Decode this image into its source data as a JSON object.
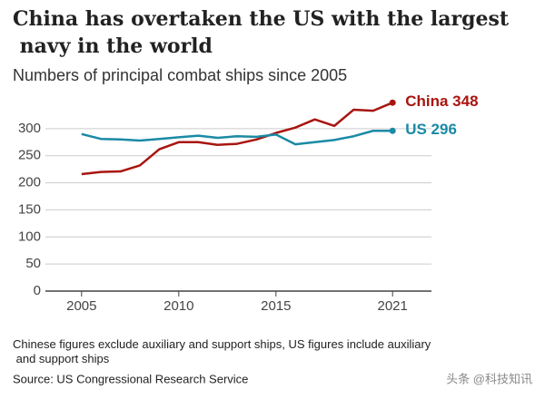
{
  "chart_data": {
    "type": "line",
    "title": "China has overtaken the US with the largest navy in the world",
    "subtitle": "Numbers of principal combat ships since 2005",
    "x": [
      2005,
      2006,
      2007,
      2008,
      2009,
      2010,
      2011,
      2012,
      2013,
      2014,
      2015,
      2016,
      2017,
      2018,
      2019,
      2020,
      2021
    ],
    "series": [
      {
        "name": "China",
        "color": "#a8150f",
        "values": [
          216,
          220,
          221,
          232,
          262,
          275,
          275,
          270,
          272,
          280,
          292,
          302,
          317,
          305,
          335,
          333,
          348
        ]
      },
      {
        "name": "US",
        "color": "#1a8aa5",
        "values": [
          290,
          281,
          280,
          278,
          281,
          284,
          287,
          283,
          286,
          285,
          289,
          271,
          275,
          279,
          286,
          296,
          296
        ]
      }
    ],
    "xlim": [
      2003,
      2023
    ],
    "xticks": [
      2005,
      2010,
      2015,
      2021
    ],
    "ylim": [
      0,
      350
    ],
    "yticks": [
      0,
      50,
      100,
      150,
      200,
      250,
      300
    ],
    "grid": true,
    "note": "Chinese figures exclude auxiliary and support ships, US figures include auxiliary and support ships",
    "source": "Source: US Congressional Research Service",
    "watermark": "头条 @科技知讯"
  }
}
